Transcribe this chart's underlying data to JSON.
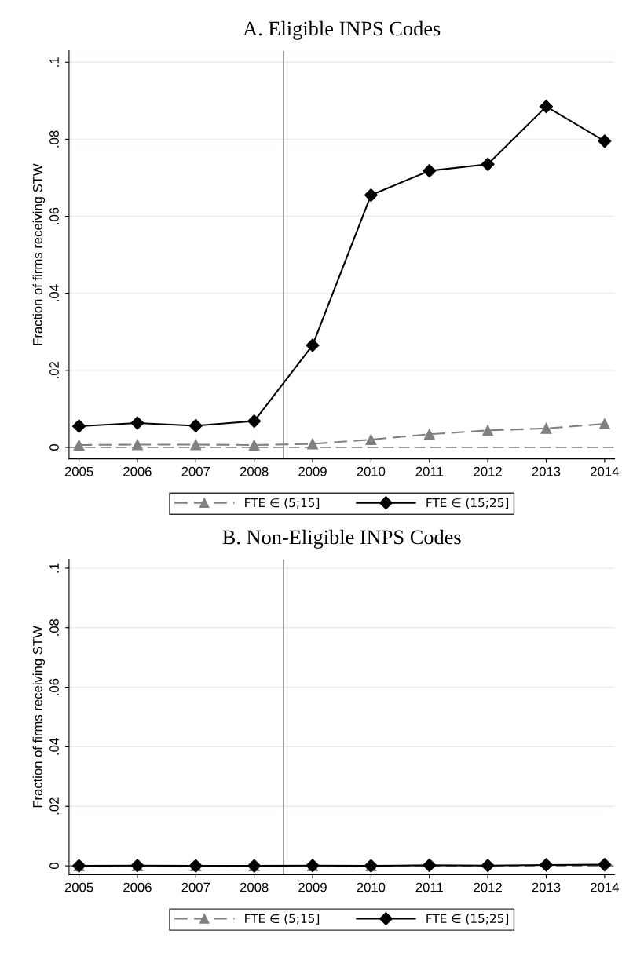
{
  "chart_data": [
    {
      "type": "line",
      "title": "A. Eligible INPS Codes",
      "ylabel": "Fraction of firms receiving STW",
      "x": [
        2005,
        2006,
        2007,
        2008,
        2009,
        2010,
        2011,
        2012,
        2013,
        2014
      ],
      "series": [
        {
          "name": "FTE ∈ (5;15]",
          "color": "#808080",
          "marker": "triangle",
          "line_style": "dashed",
          "values": [
            0.0006,
            0.0007,
            0.0007,
            0.0006,
            0.0009,
            0.002,
            0.0034,
            0.0044,
            0.0049,
            0.0061
          ]
        },
        {
          "name": "FTE ∈ (15;25]",
          "color": "#000000",
          "marker": "diamond",
          "line_style": "solid",
          "values": [
            0.0055,
            0.0063,
            0.0056,
            0.0068,
            0.0265,
            0.0655,
            0.0718,
            0.0735,
            0.0885,
            0.0795
          ]
        }
      ],
      "xlim": [
        2004.83,
        2014.17
      ],
      "ylim": [
        -0.003,
        0.103
      ],
      "xticks": [
        2005,
        2006,
        2007,
        2008,
        2009,
        2010,
        2011,
        2012,
        2013,
        2014
      ],
      "yticks": [
        {
          "value": 0,
          "label": "0"
        },
        {
          "value": 0.02,
          "label": ".02"
        },
        {
          "value": 0.04,
          "label": ".04"
        },
        {
          "value": 0.06,
          "label": ".06"
        },
        {
          "value": 0.08,
          "label": ".08"
        },
        {
          "value": 0.1,
          "label": ".1"
        }
      ],
      "ref_lines": [
        {
          "axis": "x",
          "value": 2008.5,
          "color": "#a0a0a0",
          "line_style": "solid"
        },
        {
          "axis": "y",
          "value": 0,
          "color": "#808080",
          "line_style": "dashed"
        }
      ],
      "grid": "y",
      "legend": "bottom"
    },
    {
      "type": "line",
      "title": "B. Non-Eligible INPS Codes",
      "ylabel": "Fraction of firms receiving STW",
      "x": [
        2005,
        2006,
        2007,
        2008,
        2009,
        2010,
        2011,
        2012,
        2013,
        2014
      ],
      "series": [
        {
          "name": "FTE ∈ (5;15]",
          "color": "#808080",
          "marker": "triangle",
          "line_style": "dashed",
          "values": [
            0.0,
            0.0,
            0.0,
            0.0,
            0.0,
            0.0,
            null,
            null,
            null,
            null
          ]
        },
        {
          "name": "FTE ∈ (15;25]",
          "color": "#000000",
          "marker": "diamond",
          "line_style": "solid",
          "values": [
            0.0,
            0.0001,
            0.0,
            0.0,
            0.0001,
            0.0,
            0.0002,
            0.0001,
            0.0003,
            0.0004
          ]
        }
      ],
      "xlim": [
        2004.83,
        2014.17
      ],
      "ylim": [
        -0.003,
        0.103
      ],
      "xticks": [
        2005,
        2006,
        2007,
        2008,
        2009,
        2010,
        2011,
        2012,
        2013,
        2014
      ],
      "yticks": [
        {
          "value": 0,
          "label": "0"
        },
        {
          "value": 0.02,
          "label": ".02"
        },
        {
          "value": 0.04,
          "label": ".04"
        },
        {
          "value": 0.06,
          "label": ".06"
        },
        {
          "value": 0.08,
          "label": ".08"
        },
        {
          "value": 0.1,
          "label": ".1"
        }
      ],
      "ref_lines": [
        {
          "axis": "x",
          "value": 2008.5,
          "color": "#a0a0a0",
          "line_style": "solid"
        },
        {
          "axis": "y",
          "value": 0,
          "color": "#808080",
          "line_style": "dashed"
        }
      ],
      "grid": "y",
      "legend": "bottom"
    }
  ]
}
